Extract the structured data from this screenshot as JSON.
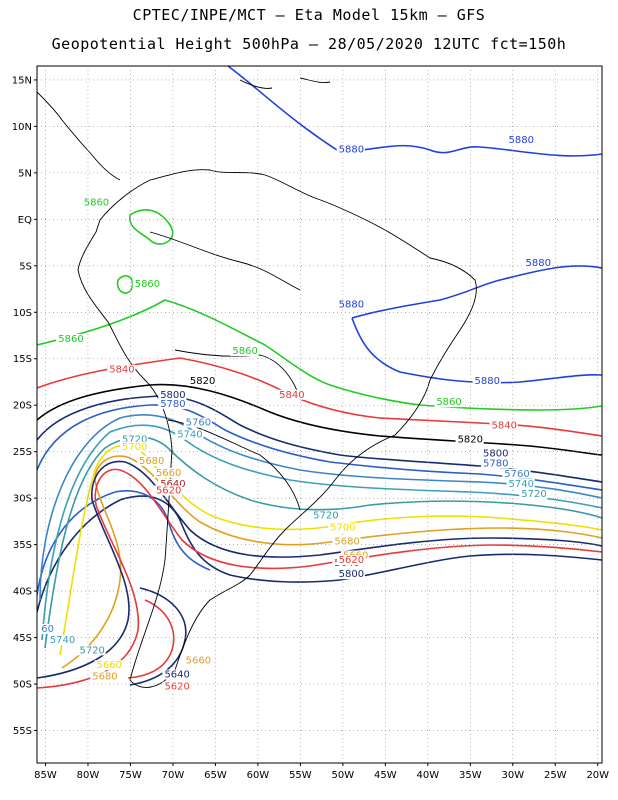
{
  "header": {
    "line1": "CPTEC/INPE/MCT –  Eta Model 15km – GFS",
    "line2": "Geopotential Height 500hPa – 28/05/2020 12UTC fct=150h"
  },
  "axes": {
    "lat_labels": [
      "15N",
      "10N",
      "5N",
      "EQ",
      "5S",
      "10S",
      "15S",
      "20S",
      "25S",
      "30S",
      "35S",
      "40S",
      "45S",
      "50S",
      "55S"
    ],
    "lat_values": [
      15,
      10,
      5,
      0,
      -5,
      -10,
      -15,
      -20,
      -25,
      -30,
      -35,
      -40,
      -45,
      -50,
      -55
    ],
    "lon_labels": [
      "85W",
      "80W",
      "75W",
      "70W",
      "65W",
      "60W",
      "55W",
      "50W",
      "45W",
      "40W",
      "35W",
      "30W",
      "25W",
      "20W"
    ],
    "lon_values": [
      -85,
      -80,
      -75,
      -70,
      -65,
      -60,
      -55,
      -50,
      -45,
      -40,
      -35,
      -30,
      -25,
      -20
    ],
    "lon_range": [
      -86,
      -19.5
    ],
    "lat_range": [
      -58.5,
      16.5
    ],
    "grid": "dotted"
  },
  "contour_colors": {
    "5880": "#1f3fe0",
    "5860": "#22cc22",
    "5840": "#e83a3a",
    "5820": "#000000",
    "5800": "#1a2a6e",
    "5780": "#2a5fc8",
    "5760": "#3a86c8",
    "5740": "#3aa0b8",
    "5720": "#3a9aa8",
    "5700": "#f0e000",
    "5680": "#e0a020",
    "5660": "#e06020",
    "5640": "#b02020"
  },
  "contour_labels": [
    {
      "text": "5880",
      "lon": -50.5,
      "lat": 7.2,
      "color_key": "5880"
    },
    {
      "text": "5880",
      "lon": -30.5,
      "lat": 8.2,
      "color_key": "5880"
    },
    {
      "text": "5880",
      "lon": -28.5,
      "lat": -5.0,
      "color_key": "5880"
    },
    {
      "text": "5880",
      "lon": -50.5,
      "lat": -9.5,
      "color_key": "5880"
    },
    {
      "text": "5880",
      "lon": -34.5,
      "lat": -17.7,
      "color_key": "5880"
    },
    {
      "text": "5860",
      "lon": -80.5,
      "lat": 1.5,
      "color_key": "5860"
    },
    {
      "text": "5860",
      "lon": -74.5,
      "lat": -7.3,
      "color_key": "5860"
    },
    {
      "text": "5860",
      "lon": -83.5,
      "lat": -13.2,
      "color_key": "5860"
    },
    {
      "text": "5860",
      "lon": -63.0,
      "lat": -14.5,
      "color_key": "5860"
    },
    {
      "text": "5860",
      "lon": -39.0,
      "lat": -20.0,
      "color_key": "5860"
    },
    {
      "text": "5840",
      "lon": -77.5,
      "lat": -16.5,
      "color_key": "5840"
    },
    {
      "text": "5840",
      "lon": -57.5,
      "lat": -19.2,
      "color_key": "5840"
    },
    {
      "text": "5840",
      "lon": -32.5,
      "lat": -22.5,
      "color_key": "5840"
    },
    {
      "text": "5820",
      "lon": -68.0,
      "lat": -17.7,
      "color_key": "5820"
    },
    {
      "text": "5820",
      "lon": -36.5,
      "lat": -24.0,
      "color_key": "5820"
    },
    {
      "text": "5800",
      "lon": -71.5,
      "lat": -19.2,
      "color_key": "5800"
    },
    {
      "text": "5800",
      "lon": -33.5,
      "lat": -25.5,
      "color_key": "5800"
    },
    {
      "text": "5800",
      "lon": -50.5,
      "lat": -38.5,
      "color_key": "5800"
    },
    {
      "text": "5780",
      "lon": -71.5,
      "lat": -20.2,
      "color_key": "5780"
    },
    {
      "text": "5780",
      "lon": -33.5,
      "lat": -26.6,
      "color_key": "5780"
    },
    {
      "text": "5760",
      "lon": -68.5,
      "lat": -22.2,
      "color_key": "5760"
    },
    {
      "text": "5760",
      "lon": -31.0,
      "lat": -27.7,
      "color_key": "5760"
    },
    {
      "text": "5740",
      "lon": -69.5,
      "lat": -23.5,
      "color_key": "5740"
    },
    {
      "text": "5740",
      "lon": -30.5,
      "lat": -28.8,
      "color_key": "5740"
    },
    {
      "text": "5720",
      "lon": -76.0,
      "lat": -24.0,
      "color_key": "5720"
    },
    {
      "text": "5720",
      "lon": -29.0,
      "lat": -29.9,
      "color_key": "5720"
    },
    {
      "text": "5720",
      "lon": -53.5,
      "lat": -32.2,
      "color_key": "5720"
    },
    {
      "text": "5720",
      "lon": -81.0,
      "lat": -46.7,
      "color_key": "5720"
    },
    {
      "text": "5700",
      "lon": -76.0,
      "lat": -24.8,
      "color_key": "5700"
    },
    {
      "text": "5700",
      "lon": -51.5,
      "lat": -33.5,
      "color_key": "5700"
    },
    {
      "text": "5680",
      "lon": -74.0,
      "lat": -26.3,
      "color_key": "5680"
    },
    {
      "text": "5680",
      "lon": -51.0,
      "lat": -35.0,
      "color_key": "5680"
    },
    {
      "text": "5680",
      "lon": -79.5,
      "lat": -49.5,
      "color_key": "5680"
    },
    {
      "text": "5660",
      "lon": -72.0,
      "lat": -27.6,
      "color_key": "5680"
    },
    {
      "text": "5660",
      "lon": -50.0,
      "lat": -36.5,
      "color_key": "5680"
    },
    {
      "text": "5660",
      "lon": -79.0,
      "lat": -48.3,
      "color_key": "5700"
    },
    {
      "text": "5660",
      "lon": -68.5,
      "lat": -47.8,
      "color_key": "5680"
    },
    {
      "text": "5640",
      "lon": -71.5,
      "lat": -28.8,
      "color_key": "5640"
    },
    {
      "text": "5640",
      "lon": -51.0,
      "lat": -37.3,
      "color_key": "5800"
    },
    {
      "text": "5640",
      "lon": -71.0,
      "lat": -49.3,
      "color_key": "5800"
    },
    {
      "text": "5620",
      "lon": -72.0,
      "lat": -29.5,
      "color_key": "5840"
    },
    {
      "text": "5620",
      "lon": -50.5,
      "lat": -37.0,
      "color_key": "5840"
    },
    {
      "text": "5620",
      "lon": -71.0,
      "lat": -50.6,
      "color_key": "5840"
    },
    {
      "text": "5740",
      "lon": -84.5,
      "lat": -45.6,
      "color_key": "5740"
    },
    {
      "text": "60",
      "lon": -85.5,
      "lat": -44.4,
      "color_key": "5760"
    }
  ]
}
